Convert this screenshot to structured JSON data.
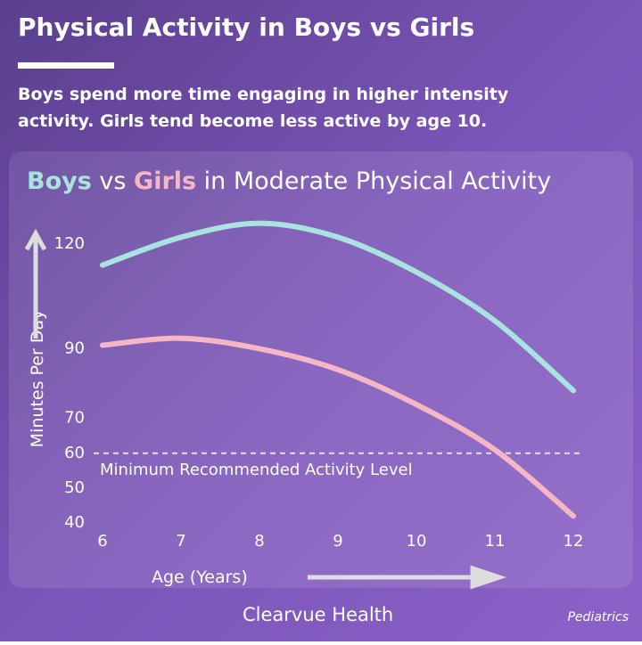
{
  "header": {
    "title": "Physical Activity in Boys vs Girls",
    "subtitle_lines": [
      "Boys spend more time engaging in higher intensity",
      "activity. Girls tend become less active by age 10."
    ]
  },
  "chart_data": {
    "type": "line",
    "title_parts": [
      "Boys",
      " vs ",
      "Girls",
      " in Moderate Physical Activity"
    ],
    "x_label": "Age (Years)",
    "y_label": "Minutes Per Day",
    "x": [
      6,
      7,
      8,
      9,
      10,
      11,
      12
    ],
    "xlim": [
      6,
      12
    ],
    "xticks": [
      6,
      7,
      8,
      9,
      10,
      11,
      12
    ],
    "ylim": [
      40,
      130
    ],
    "yticks": [
      40,
      50,
      60,
      70,
      90,
      120
    ],
    "series": [
      {
        "name": "Boys",
        "color": "#a9e3df",
        "values": [
          114,
          122,
          126,
          122,
          112,
          98,
          78
        ]
      },
      {
        "name": "Girls",
        "color": "#f6b7c4",
        "values": [
          91,
          93,
          90,
          84,
          74,
          61,
          42
        ]
      }
    ],
    "reference_line": {
      "value": 60,
      "label": "Minimum Recommended Activity Level"
    }
  },
  "footer": {
    "brand": "Clearvue Health",
    "tag": "Pediatrics"
  }
}
